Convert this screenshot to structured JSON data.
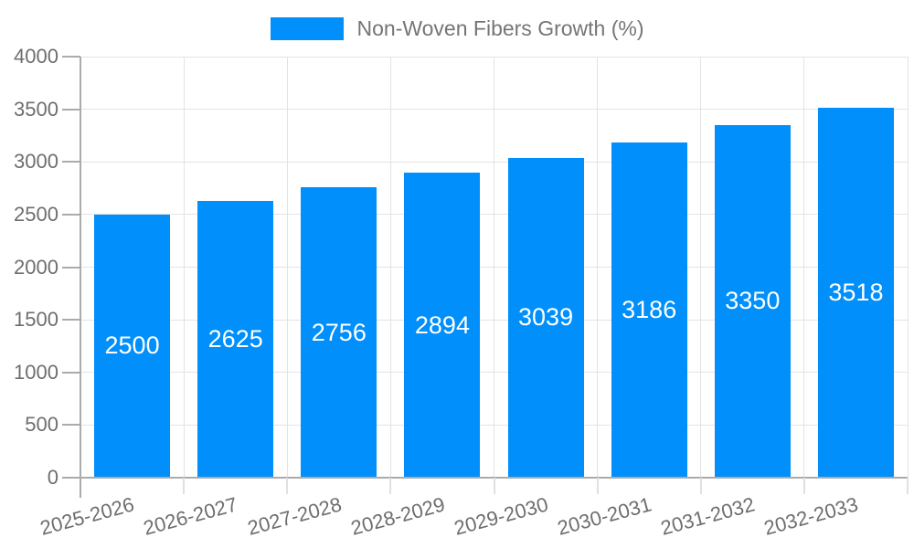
{
  "chart_data": {
    "type": "bar",
    "title": "",
    "categories": [
      "2025-2026",
      "2026-2027",
      "2027-2028",
      "2028-2029",
      "2029-2030",
      "2030-2031",
      "2031-2032",
      "2032-2033"
    ],
    "series": [
      {
        "name": "Non-Woven Fibers Growth (%)",
        "color": "#008FFB",
        "values": [
          2500,
          2625,
          2756,
          2894,
          3039,
          3186,
          3350,
          3518
        ]
      }
    ],
    "value_labels": {
      "visible": true,
      "position": "center",
      "color": "#FFFFFF"
    },
    "xlabel": "",
    "ylabel": "",
    "ylim": [
      0,
      4000
    ],
    "yticks": [
      0,
      500,
      1000,
      1500,
      2000,
      2500,
      3000,
      3500,
      4000
    ],
    "x_tick_rotation_deg": -15,
    "grid": {
      "horizontal": true,
      "vertical": true
    },
    "legend_position": "top"
  },
  "colors": {
    "bar": "#008FFB",
    "grid": "#E3E3E3",
    "axis": "#ABABAB",
    "x_tick_mark": "#E0E0E0",
    "axis_text": "#6E6E6E",
    "legend_text": "#757575",
    "value_label_text": "#FFFFFF",
    "background": "#FFFFFF"
  }
}
